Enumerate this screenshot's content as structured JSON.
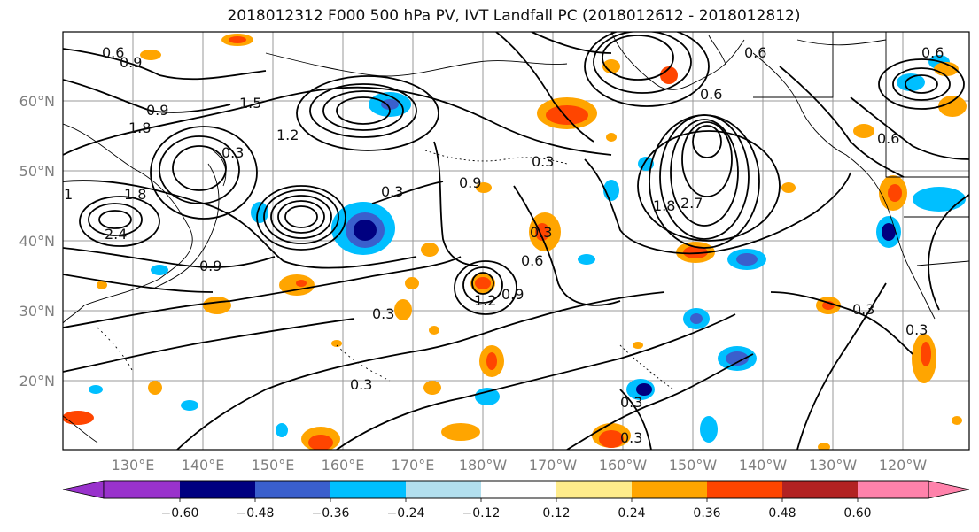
{
  "title": "2018012312 F000 500 hPa PV, IVT Landfall PC (2018012612 - 2018012812)",
  "lat_labels": [
    "60°N",
    "50°N",
    "40°N",
    "30°N",
    "20°N"
  ],
  "lon_labels": [
    "130°E",
    "140°E",
    "150°E",
    "160°E",
    "170°E",
    "180°W",
    "170°W",
    "160°W",
    "150°W",
    "140°W",
    "130°W",
    "120°W"
  ],
  "colorbar": {
    "tick_labels": [
      "−0.60",
      "−0.48",
      "−0.36",
      "−0.24",
      "−0.12",
      "0.12",
      "0.24",
      "0.36",
      "0.48",
      "0.60"
    ],
    "colors": [
      "#9932cc",
      "#000080",
      "#3a5fcd",
      "#00bfff",
      "#b2dfee",
      "#ffffff",
      "#ffec8b",
      "#ffa500",
      "#ff4500",
      "#b22222",
      "#ff82ab"
    ]
  },
  "contour_labels": [
    "0.6",
    "0.9",
    "0.9",
    "1.5",
    "1.8",
    "1.2",
    "0.3",
    "1",
    "1.8",
    "2.4",
    "0.9",
    "0.3",
    "0.9",
    "0.3",
    "0.3",
    "0.6",
    "1.2",
    "0.9",
    "0.3",
    "0.3",
    "0.3",
    "0.3",
    "2.7",
    "1.8",
    "0.6",
    "0.6",
    "0.6",
    "0.3",
    "0.3",
    "0.6"
  ]
}
